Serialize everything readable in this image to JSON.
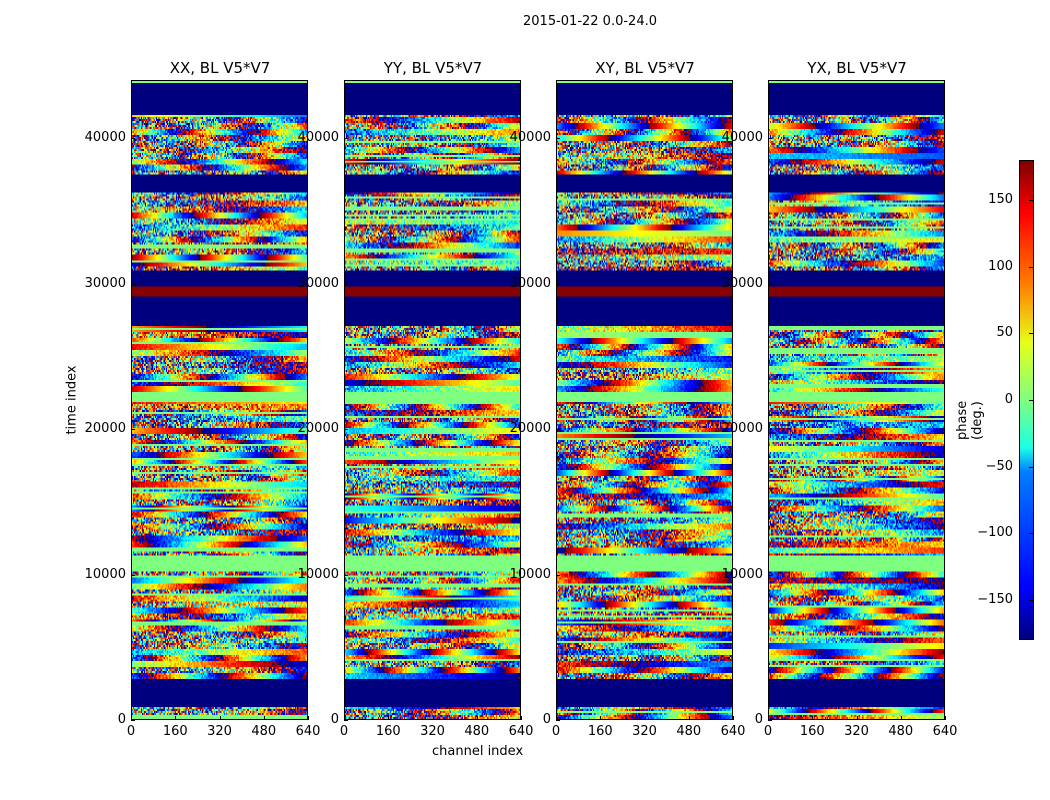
{
  "suptitle": "2015-01-22 0.0-24.0",
  "chart_data": {
    "type": "heatmap",
    "title": "2015-01-22 0.0-24.0",
    "panels": [
      {
        "title": "XX, BL V5*V7"
      },
      {
        "title": "YY, BL V5*V7"
      },
      {
        "title": "XY, BL V5*V7"
      },
      {
        "title": "YX, BL V5*V7"
      }
    ],
    "xlabel": "channel index",
    "ylabel": "time index",
    "xlim": [
      0,
      640
    ],
    "ylim": [
      0,
      44000
    ],
    "xticks": [
      "0",
      "160",
      "320",
      "480",
      "640"
    ],
    "xtick_values": [
      0,
      160,
      320,
      480,
      640
    ],
    "yticks": [
      "0",
      "10000",
      "20000",
      "30000",
      "40000"
    ],
    "ytick_values": [
      0,
      10000,
      20000,
      30000,
      40000
    ],
    "colormap": "jet",
    "colorbar": {
      "label": "phase (deg.)",
      "range": [
        -180,
        180
      ],
      "ticks": [
        "150",
        "100",
        "50",
        "0",
        "−50",
        "−100",
        "−150"
      ],
      "tick_values": [
        150,
        100,
        50,
        0,
        -50,
        -100,
        -150
      ]
    },
    "segments": [
      {
        "from": 0,
        "to": 800,
        "kind": "noise"
      },
      {
        "from": 800,
        "to": 2700,
        "kind": "flagged",
        "value": -180
      },
      {
        "from": 2700,
        "to": 10200,
        "kind": "noise"
      },
      {
        "from": 10200,
        "to": 11300,
        "kind": "constant",
        "value": 0
      },
      {
        "from": 11300,
        "to": 21900,
        "kind": "noise"
      },
      {
        "from": 21900,
        "to": 22600,
        "kind": "constant",
        "value": 0
      },
      {
        "from": 22600,
        "to": 27100,
        "kind": "noise"
      },
      {
        "from": 27100,
        "to": 29200,
        "kind": "flagged",
        "value": -180
      },
      {
        "from": 29200,
        "to": 29800,
        "kind": "constant",
        "value": 178
      },
      {
        "from": 29800,
        "to": 30900,
        "kind": "flagged",
        "value": -180
      },
      {
        "from": 30900,
        "to": 36300,
        "kind": "noise"
      },
      {
        "from": 36300,
        "to": 37500,
        "kind": "flagged",
        "value": -180
      },
      {
        "from": 37500,
        "to": 41600,
        "kind": "noise"
      },
      {
        "from": 41600,
        "to": 43800,
        "kind": "flagged",
        "value": -180
      },
      {
        "from": 43800,
        "to": 44000,
        "kind": "constant",
        "value": 0
      }
    ]
  }
}
